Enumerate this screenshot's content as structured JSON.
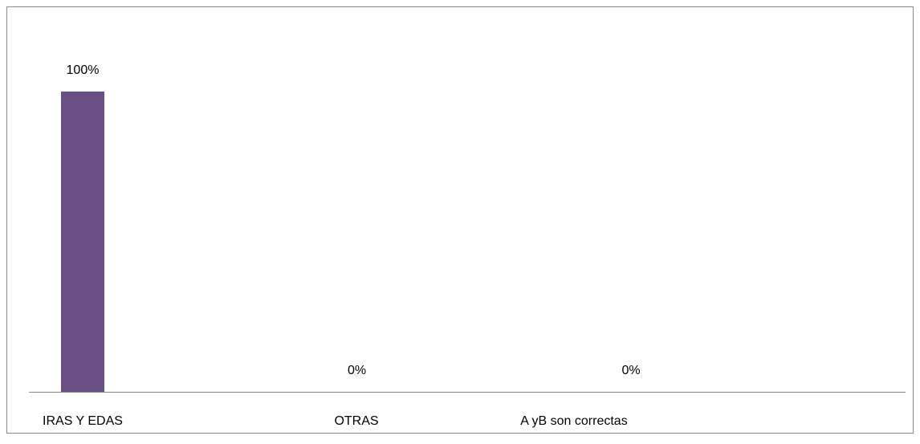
{
  "chart_data": {
    "type": "bar",
    "categories": [
      "IRAS Y EDAS",
      "OTRAS",
      "A yB son correctas"
    ],
    "values": [
      100,
      0,
      0
    ],
    "value_labels": [
      "100%",
      "0%",
      "0%"
    ],
    "color": "#6a4f85",
    "ylim": [
      0,
      100
    ]
  }
}
